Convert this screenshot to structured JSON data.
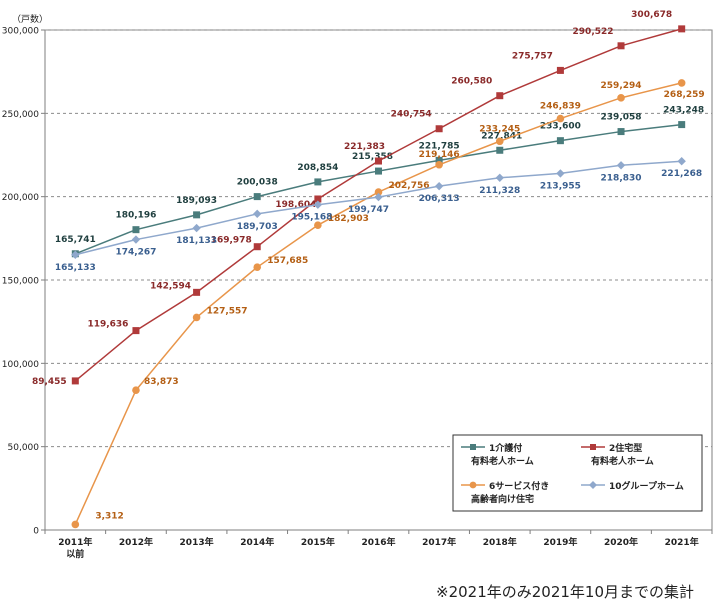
{
  "chart_data": {
    "type": "line",
    "title": "",
    "ylabel": "（戸数）",
    "xlabel": "",
    "ylim": [
      0,
      300000
    ],
    "yticks": [
      0,
      50000,
      100000,
      150000,
      200000,
      250000,
      300000
    ],
    "ytick_labels": [
      "0",
      "50,000",
      "100,000",
      "150,000",
      "200,000",
      "250,000",
      "300,000"
    ],
    "grid": true,
    "categories": [
      "2011年以前",
      "2012年",
      "2013年",
      "2014年",
      "2015年",
      "2016年",
      "2017年",
      "2018年",
      "2019年",
      "2020年",
      "2021年"
    ],
    "category_labels": [
      [
        "2011年",
        "以前"
      ],
      [
        "2012年"
      ],
      [
        "2013年"
      ],
      [
        "2014年"
      ],
      [
        "2015年"
      ],
      [
        "2016年"
      ],
      [
        "2017年"
      ],
      [
        "2018年"
      ],
      [
        "2019年"
      ],
      [
        "2020年"
      ],
      [
        "2021年"
      ]
    ],
    "series": [
      {
        "name": "1介護付有料老人ホーム",
        "legend_lines": [
          "1介護付",
          "有料老人ホーム"
        ],
        "color": "#4a7c7c",
        "label_color": "#1f3f3f",
        "marker": "square",
        "values": [
          165741,
          180196,
          189093,
          200038,
          208854,
          215358,
          221785,
          227841,
          233600,
          239058,
          243248
        ],
        "labels": [
          "165,741",
          "180,196",
          "189,093",
          "200,038",
          "208,854",
          "215,358",
          "221,785",
          "227,841",
          "233,600",
          "239,058",
          "243,248"
        ]
      },
      {
        "name": "2住宅型有料老人ホーム",
        "legend_lines": [
          "2住宅型",
          "有料老人ホーム"
        ],
        "color": "#b03a3a",
        "label_color": "#8a2a2a",
        "marker": "square",
        "values": [
          89455,
          119636,
          142594,
          169978,
          198604,
          221383,
          240754,
          260580,
          275757,
          290522,
          300678
        ],
        "labels": [
          "89,455",
          "119,636",
          "142,594",
          "169,978",
          "198,604",
          "221,383",
          "240,754",
          "260,580",
          "275,757",
          "290,522",
          "300,678"
        ]
      },
      {
        "name": "6サービス付き高齢者向け住宅",
        "legend_lines": [
          "6サービス付き",
          "高齢者向け住宅"
        ],
        "color": "#e8954a",
        "label_color": "#b45f14",
        "marker": "circle",
        "values": [
          3312,
          83873,
          127557,
          157685,
          182903,
          202756,
          219146,
          233245,
          246839,
          259294,
          268259
        ],
        "labels": [
          "3,312",
          "83,873",
          "127,557",
          "157,685",
          "182,903",
          "202,756",
          "219,146",
          "233,245",
          "246,839",
          "259,294",
          "268,259"
        ]
      },
      {
        "name": "10グループホーム",
        "legend_lines": [
          "10グループホーム"
        ],
        "color": "#8fa8cc",
        "label_color": "#3a5f8f",
        "marker": "diamond",
        "values": [
          165133,
          174267,
          181133,
          189703,
          195168,
          199747,
          206313,
          211328,
          213955,
          218830,
          221268
        ],
        "labels": [
          "165,133",
          "174,267",
          "181,133",
          "189,703",
          "195,168",
          "199,747",
          "206,313",
          "211,328",
          "213,955",
          "218,830",
          "221,268"
        ]
      }
    ],
    "legend_position": "bottom-right"
  },
  "footnote": "※2021年のみ2021年10月までの集計"
}
